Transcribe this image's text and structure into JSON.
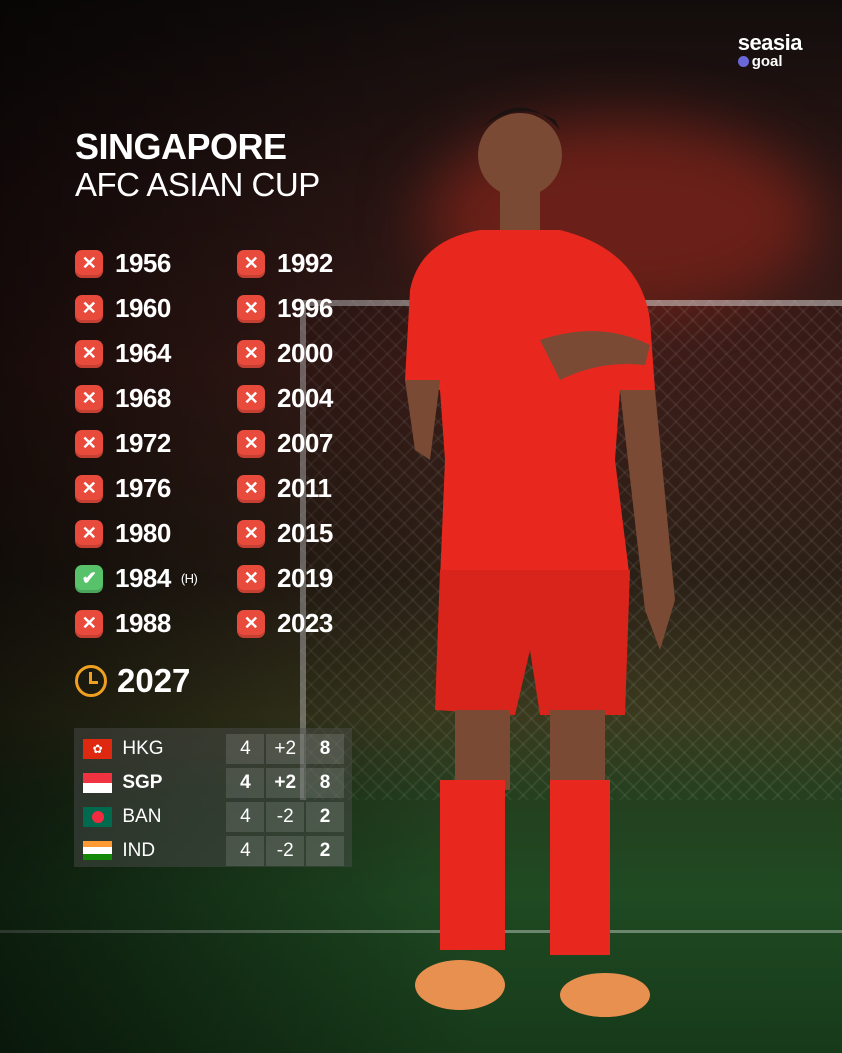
{
  "logo": {
    "brand": "seasia",
    "sub": "goal"
  },
  "title": "SINGAPORE",
  "subtitle": "AFC ASIAN CUP",
  "editions": [
    {
      "year": "1956",
      "status": "not-qualified"
    },
    {
      "year": "1960",
      "status": "not-qualified"
    },
    {
      "year": "1964",
      "status": "not-qualified"
    },
    {
      "year": "1968",
      "status": "not-qualified"
    },
    {
      "year": "1972",
      "status": "not-qualified"
    },
    {
      "year": "1976",
      "status": "not-qualified"
    },
    {
      "year": "1980",
      "status": "not-qualified"
    },
    {
      "year": "1984",
      "status": "qualified",
      "note": "(H)"
    },
    {
      "year": "1988",
      "status": "not-qualified"
    },
    {
      "year": "1992",
      "status": "not-qualified"
    },
    {
      "year": "1996",
      "status": "not-qualified"
    },
    {
      "year": "2000",
      "status": "not-qualified"
    },
    {
      "year": "2004",
      "status": "not-qualified"
    },
    {
      "year": "2007",
      "status": "not-qualified"
    },
    {
      "year": "2011",
      "status": "not-qualified"
    },
    {
      "year": "2015",
      "status": "not-qualified"
    },
    {
      "year": "2019",
      "status": "not-qualified"
    },
    {
      "year": "2023",
      "status": "not-qualified"
    }
  ],
  "upcoming": {
    "year": "2027",
    "icon": "clock-icon"
  },
  "table": [
    {
      "code": "HKG",
      "played": "4",
      "gd": "+2",
      "pts": "8"
    },
    {
      "code": "SGP",
      "played": "4",
      "gd": "+2",
      "pts": "8",
      "highlight": true
    },
    {
      "code": "BAN",
      "played": "4",
      "gd": "-2",
      "pts": "2"
    },
    {
      "code": "IND",
      "played": "4",
      "gd": "-2",
      "pts": "2"
    }
  ],
  "colors": {
    "cross": "#e84a3c",
    "check": "#58c26a",
    "clock": "#f0a020",
    "jersey": "#e8281e"
  }
}
